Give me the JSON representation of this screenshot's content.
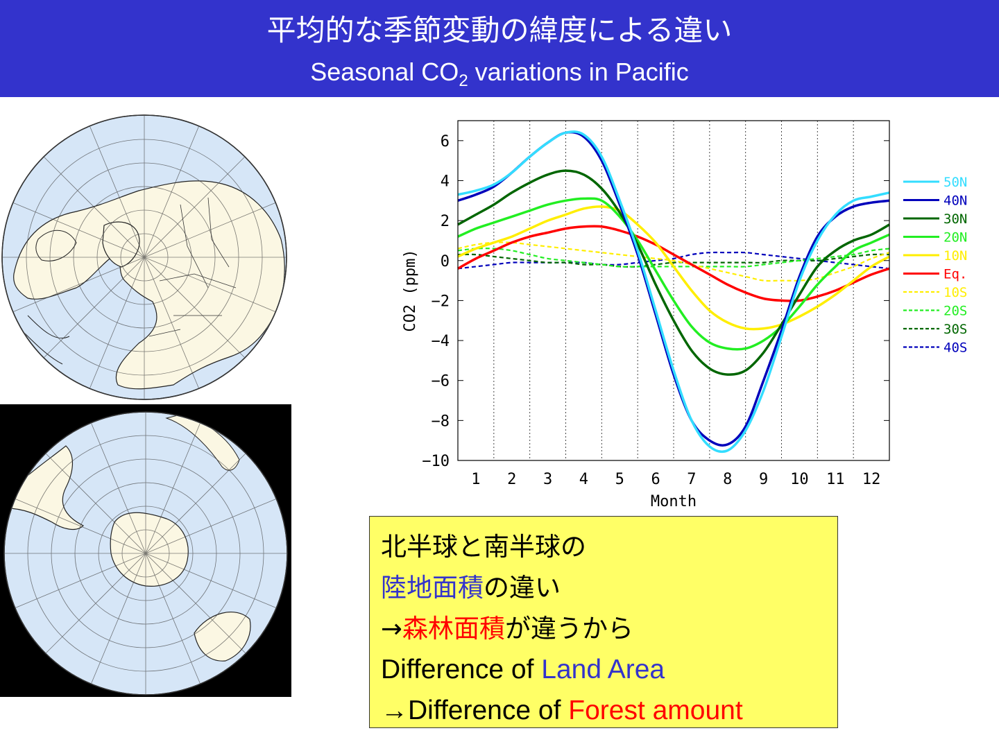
{
  "header": {
    "title_jp": "平均的な季節変動の緯度による違い",
    "title_en_prefix": "Seasonal CO",
    "title_en_sub": "2",
    "title_en_suffix": " variations in Pacific"
  },
  "maps": {
    "north_label": "Northern hemisphere polar map",
    "south_label": "Southern hemisphere polar map"
  },
  "chart_data": {
    "type": "line",
    "title": "",
    "xlabel": "Month",
    "ylabel": "CO2 (ppm)",
    "xlim": [
      0.5,
      12.5
    ],
    "ylim": [
      -10,
      7
    ],
    "grid": "vertical dotted at month boundaries",
    "legend_position": "right",
    "x": [
      0.5,
      1,
      1.5,
      2,
      2.5,
      3,
      3.5,
      4,
      4.5,
      5,
      5.5,
      6,
      6.5,
      7,
      7.5,
      8,
      8.5,
      9,
      9.5,
      10,
      10.5,
      11,
      11.5,
      12,
      12.5
    ],
    "xticks": [
      1,
      2,
      3,
      4,
      5,
      6,
      7,
      8,
      9,
      10,
      11,
      12
    ],
    "yticks": [
      6,
      4,
      2,
      0,
      -2,
      -4,
      -6,
      -8,
      -10
    ],
    "series": [
      {
        "name": "50N",
        "color": "#33ddff",
        "style": "solid",
        "values": [
          3.3,
          3.5,
          3.8,
          4.4,
          5.2,
          5.9,
          6.4,
          6.3,
          5.2,
          3.0,
          0.5,
          -2.5,
          -5.5,
          -8.0,
          -9.3,
          -9.5,
          -8.5,
          -6.5,
          -3.8,
          -1.0,
          1.0,
          2.3,
          3.0,
          3.2,
          3.4
        ]
      },
      {
        "name": "40N",
        "color": "#0000bb",
        "style": "solid",
        "values": [
          3.0,
          3.3,
          3.7,
          4.4,
          5.2,
          5.9,
          6.4,
          6.2,
          5.0,
          2.8,
          0.3,
          -2.7,
          -5.7,
          -8.0,
          -9.0,
          -9.2,
          -8.3,
          -6.0,
          -3.5,
          -0.8,
          1.2,
          2.2,
          2.7,
          2.9,
          3.0
        ]
      },
      {
        "name": "30N",
        "color": "#006600",
        "style": "solid",
        "values": [
          1.8,
          2.3,
          2.8,
          3.4,
          3.9,
          4.3,
          4.5,
          4.3,
          3.6,
          2.4,
          0.8,
          -1.2,
          -3.0,
          -4.5,
          -5.4,
          -5.7,
          -5.5,
          -4.6,
          -3.2,
          -1.7,
          -0.3,
          0.5,
          1.0,
          1.3,
          1.8
        ]
      },
      {
        "name": "20N",
        "color": "#22ee22",
        "style": "solid",
        "values": [
          1.2,
          1.6,
          1.9,
          2.2,
          2.5,
          2.8,
          3.0,
          3.1,
          3.0,
          2.2,
          1.0,
          -0.5,
          -2.0,
          -3.3,
          -4.1,
          -4.4,
          -4.4,
          -4.0,
          -3.3,
          -2.3,
          -1.2,
          -0.3,
          0.5,
          0.9,
          1.3
        ]
      },
      {
        "name": "10N",
        "color": "#ffee00",
        "style": "solid",
        "values": [
          0.2,
          0.6,
          0.9,
          1.2,
          1.6,
          2.0,
          2.3,
          2.6,
          2.7,
          2.5,
          1.8,
          0.9,
          -0.3,
          -1.5,
          -2.5,
          -3.1,
          -3.4,
          -3.4,
          -3.2,
          -2.8,
          -2.3,
          -1.7,
          -1.0,
          -0.3,
          0.2
        ]
      },
      {
        "name": "Eq.",
        "color": "#ff0000",
        "style": "solid",
        "values": [
          -0.4,
          0.1,
          0.5,
          0.9,
          1.2,
          1.4,
          1.6,
          1.7,
          1.7,
          1.5,
          1.2,
          0.8,
          0.3,
          -0.2,
          -0.7,
          -1.2,
          -1.6,
          -1.9,
          -2.0,
          -2.0,
          -1.8,
          -1.5,
          -1.1,
          -0.7,
          -0.4
        ]
      },
      {
        "name": "10S",
        "color": "#ffee00",
        "style": "dashed",
        "values": [
          0.6,
          0.8,
          0.9,
          0.9,
          0.8,
          0.7,
          0.6,
          0.5,
          0.4,
          0.3,
          0.2,
          0.1,
          0.0,
          -0.2,
          -0.4,
          -0.6,
          -0.8,
          -1.0,
          -1.0,
          -1.0,
          -0.9,
          -0.6,
          -0.3,
          0.1,
          0.4
        ]
      },
      {
        "name": "20S",
        "color": "#22ee22",
        "style": "dashed",
        "values": [
          0.5,
          0.6,
          0.6,
          0.5,
          0.3,
          0.1,
          0.0,
          -0.1,
          -0.2,
          -0.3,
          -0.3,
          -0.3,
          -0.3,
          -0.3,
          -0.3,
          -0.3,
          -0.3,
          -0.2,
          -0.1,
          0.0,
          0.1,
          0.2,
          0.3,
          0.5,
          0.6
        ]
      },
      {
        "name": "30S",
        "color": "#006600",
        "style": "dashed",
        "values": [
          0.3,
          0.3,
          0.2,
          0.1,
          0.0,
          -0.1,
          -0.1,
          -0.2,
          -0.2,
          -0.3,
          -0.3,
          -0.2,
          -0.1,
          -0.1,
          -0.1,
          -0.1,
          -0.1,
          -0.1,
          0.0,
          0.0,
          0.0,
          0.1,
          0.2,
          0.3,
          0.3
        ]
      },
      {
        "name": "40S",
        "color": "#0000bb",
        "style": "dashed",
        "values": [
          -0.4,
          -0.3,
          -0.2,
          -0.1,
          -0.1,
          -0.1,
          -0.1,
          -0.1,
          -0.2,
          -0.2,
          -0.1,
          0.0,
          0.1,
          0.3,
          0.4,
          0.4,
          0.4,
          0.3,
          0.2,
          0.1,
          0.0,
          -0.1,
          -0.2,
          -0.3,
          -0.4
        ]
      }
    ]
  },
  "note": {
    "line1": "北半球と南半球の",
    "line2_hl": "陸地面積",
    "line2_rest": "の違い",
    "line3_arrow": "→",
    "line3_hl": "森林面積",
    "line3_rest": "が違うから",
    "line4_text": "Difference of ",
    "line4_hl": "Land Area",
    "line5_arrow": "→",
    "line5_text": "Difference of ",
    "line5_hl": "Forest amount"
  }
}
